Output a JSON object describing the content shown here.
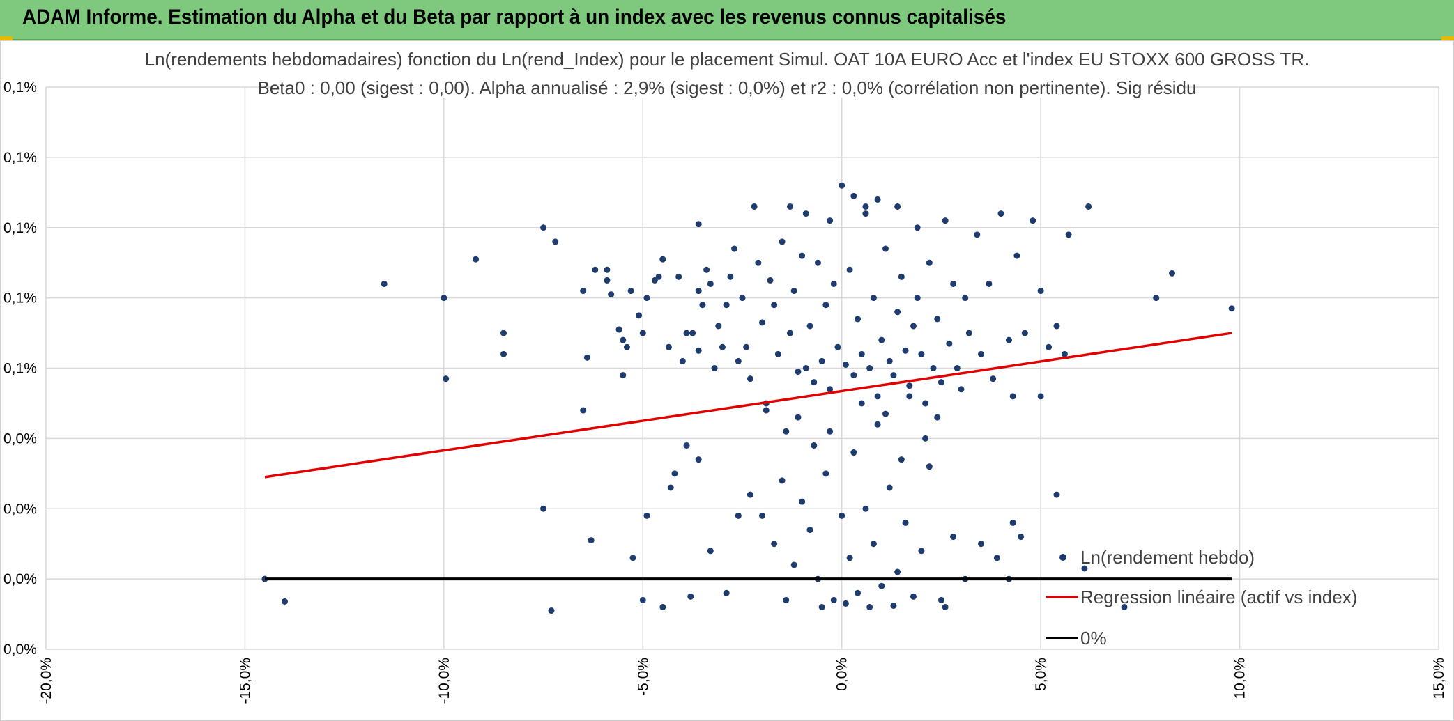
{
  "header": {
    "title": "ADAM Informe. Estimation du Alpha et du Beta par rapport à un index avec les revenus connus capitalisés"
  },
  "colors": {
    "header_bg": "#7ec97e",
    "points": "#1f3c6e",
    "regression": "#e00000",
    "zero_line": "#000000",
    "grid": "#d9d9d9"
  },
  "chart_data": {
    "type": "scatter",
    "title_line1": "Ln(rendements hebdomadaires) fonction du Ln(rend_Index) pour le placement Simul. OAT 10A EURO Acc et l'index EU STOXX 600 GROSS TR.",
    "title_line2": "Beta0 : 0,00 (sigest : 0,00). Alpha annualisé : 2,9% (sigest : 0,0%) et r2 : 0,0% (corrélation non pertinente). Sig résidu",
    "x_ticks": [
      "-20,0%",
      "-15,0%",
      "-10,0%",
      "-5,0%",
      "0,0%",
      "5,0%",
      "10,0%",
      "15,0%"
    ],
    "x_tick_values": [
      -20,
      -15,
      -10,
      -5,
      0,
      5,
      10,
      15
    ],
    "y_ticks": [
      "0,0%",
      "0,0%",
      "0,0%",
      "0,0%",
      "0,1%",
      "0,1%",
      "0,1%",
      "0,1%",
      "0,1%"
    ],
    "xlim": [
      -20,
      15
    ],
    "ylim": [
      0,
      8
    ],
    "grid": true,
    "legend_position": "bottom-right",
    "series": [
      {
        "name": "Ln(rendement hebdo)",
        "kind": "points"
      },
      {
        "name": "Regression linéaire (actif vs index)",
        "kind": "line",
        "x": [
          -14.5,
          9.8
        ],
        "y": [
          2.45,
          4.5
        ]
      },
      {
        "name": "0%",
        "kind": "line",
        "x": [
          -14.5,
          9.8
        ],
        "y": [
          1.0,
          1.0
        ]
      }
    ],
    "points": [
      [
        -14.5,
        1.0
      ],
      [
        -14.0,
        0.68
      ],
      [
        -11.5,
        5.2
      ],
      [
        -10.0,
        5.0
      ],
      [
        -9.95,
        3.85
      ],
      [
        -9.2,
        5.55
      ],
      [
        -8.5,
        4.5
      ],
      [
        -8.5,
        4.2
      ],
      [
        -7.5,
        6.0
      ],
      [
        -7.5,
        2.0
      ],
      [
        -7.3,
        0.55
      ],
      [
        -7.2,
        5.8
      ],
      [
        -6.5,
        3.4
      ],
      [
        -6.5,
        5.1
      ],
      [
        -6.4,
        4.15
      ],
      [
        -6.3,
        1.55
      ],
      [
        -6.2,
        5.4
      ],
      [
        -5.9,
        5.4
      ],
      [
        -5.9,
        5.25
      ],
      [
        -5.8,
        5.05
      ],
      [
        -5.6,
        4.55
      ],
      [
        -5.5,
        4.4
      ],
      [
        -5.4,
        4.3
      ],
      [
        -5.5,
        3.9
      ],
      [
        -5.3,
        5.1
      ],
      [
        -5.25,
        1.3
      ],
      [
        -5.1,
        4.75
      ],
      [
        -5.0,
        4.5
      ],
      [
        -4.9,
        5.0
      ],
      [
        -4.9,
        1.9
      ],
      [
        -4.7,
        5.25
      ],
      [
        -4.6,
        5.3
      ],
      [
        -4.5,
        5.55
      ],
      [
        -4.3,
        2.3
      ],
      [
        -4.35,
        4.3
      ],
      [
        -4.1,
        5.3
      ],
      [
        -4.0,
        4.1
      ],
      [
        -3.9,
        4.5
      ],
      [
        -3.6,
        4.25
      ],
      [
        -3.75,
        4.5
      ],
      [
        -3.6,
        5.1
      ],
      [
        -3.6,
        6.05
      ],
      [
        -3.5,
        4.9
      ],
      [
        -3.4,
        5.4
      ],
      [
        -3.3,
        5.2
      ],
      [
        -3.2,
        4.0
      ],
      [
        -3.1,
        4.6
      ],
      [
        -3.0,
        4.3
      ],
      [
        -2.9,
        4.9
      ],
      [
        -2.8,
        5.3
      ],
      [
        -2.7,
        5.7
      ],
      [
        -2.6,
        4.1
      ],
      [
        -2.5,
        5.0
      ],
      [
        -2.4,
        4.3
      ],
      [
        -2.3,
        3.85
      ],
      [
        -2.2,
        6.3
      ],
      [
        -2.1,
        5.5
      ],
      [
        -2.0,
        4.65
      ],
      [
        -1.9,
        3.5
      ],
      [
        -1.8,
        5.25
      ],
      [
        -1.7,
        4.9
      ],
      [
        -1.6,
        4.2
      ],
      [
        -1.5,
        5.8
      ],
      [
        -1.4,
        3.1
      ],
      [
        -1.3,
        4.5
      ],
      [
        -1.2,
        5.1
      ],
      [
        -1.1,
        3.95
      ],
      [
        -1.0,
        5.6
      ],
      [
        -0.9,
        4.0
      ],
      [
        -0.8,
        4.6
      ],
      [
        -0.7,
        3.8
      ],
      [
        -0.6,
        5.5
      ],
      [
        -0.5,
        4.1
      ],
      [
        -0.4,
        4.9
      ],
      [
        -0.3,
        3.7
      ],
      [
        -0.2,
        5.2
      ],
      [
        -0.1,
        4.3
      ],
      [
        0.0,
        6.6
      ],
      [
        0.1,
        4.05
      ],
      [
        0.2,
        5.4
      ],
      [
        0.3,
        3.9
      ],
      [
        0.4,
        4.7
      ],
      [
        0.5,
        4.2
      ],
      [
        0.6,
        6.3
      ],
      [
        0.7,
        4.0
      ],
      [
        0.8,
        5.0
      ],
      [
        0.9,
        3.6
      ],
      [
        1.0,
        4.4
      ],
      [
        1.1,
        5.7
      ],
      [
        1.2,
        4.1
      ],
      [
        1.3,
        3.9
      ],
      [
        1.4,
        4.8
      ],
      [
        1.5,
        5.3
      ],
      [
        1.6,
        4.25
      ],
      [
        1.7,
        3.75
      ],
      [
        1.8,
        4.6
      ],
      [
        1.9,
        5.0
      ],
      [
        2.0,
        4.2
      ],
      [
        2.1,
        3.5
      ],
      [
        2.2,
        5.5
      ],
      [
        2.3,
        4.0
      ],
      [
        2.4,
        4.7
      ],
      [
        2.5,
        3.8
      ],
      [
        2.6,
        6.1
      ],
      [
        2.7,
        4.35
      ],
      [
        2.8,
        5.2
      ],
      [
        2.9,
        4.0
      ],
      [
        3.0,
        3.7
      ],
      [
        3.1,
        5.0
      ],
      [
        3.2,
        4.5
      ],
      [
        3.4,
        5.9
      ],
      [
        3.5,
        4.2
      ],
      [
        3.7,
        5.2
      ],
      [
        3.8,
        3.85
      ],
      [
        4.0,
        6.2
      ],
      [
        4.2,
        4.4
      ],
      [
        4.3,
        3.6
      ],
      [
        4.4,
        5.6
      ],
      [
        4.6,
        4.5
      ],
      [
        4.8,
        6.1
      ],
      [
        5.0,
        5.1
      ],
      [
        5.0,
        3.6
      ],
      [
        5.2,
        4.3
      ],
      [
        5.4,
        4.6
      ],
      [
        5.6,
        4.2
      ],
      [
        5.7,
        5.9
      ],
      [
        5.4,
        2.2
      ],
      [
        6.2,
        6.3
      ],
      [
        7.1,
        0.6
      ],
      [
        7.9,
        5.0
      ],
      [
        8.3,
        5.35
      ],
      [
        9.8,
        4.85
      ],
      [
        -2.3,
        2.2
      ],
      [
        -2.0,
        1.9
      ],
      [
        -1.7,
        1.5
      ],
      [
        -1.5,
        2.4
      ],
      [
        -1.2,
        1.2
      ],
      [
        -1.0,
        2.1
      ],
      [
        -0.8,
        1.7
      ],
      [
        -0.6,
        1.0
      ],
      [
        -0.4,
        2.5
      ],
      [
        -0.2,
        0.7
      ],
      [
        0.0,
        1.9
      ],
      [
        0.2,
        1.3
      ],
      [
        0.4,
        0.8
      ],
      [
        0.6,
        2.0
      ],
      [
        0.8,
        1.5
      ],
      [
        1.0,
        0.9
      ],
      [
        1.2,
        2.3
      ],
      [
        1.4,
        1.1
      ],
      [
        1.6,
        1.8
      ],
      [
        1.8,
        0.75
      ],
      [
        2.0,
        1.4
      ],
      [
        2.2,
        2.6
      ],
      [
        2.5,
        0.7
      ],
      [
        2.8,
        1.6
      ],
      [
        3.1,
        1.0
      ],
      [
        3.5,
        1.5
      ],
      [
        3.9,
        1.3
      ],
      [
        4.3,
        1.8
      ],
      [
        4.5,
        1.6
      ],
      [
        6.1,
        1.15
      ],
      [
        -3.3,
        1.4
      ],
      [
        -3.6,
        2.7
      ],
      [
        -3.9,
        2.9
      ],
      [
        -4.2,
        2.5
      ],
      [
        -2.9,
        0.8
      ],
      [
        -2.6,
        1.9
      ],
      [
        -0.7,
        2.9
      ],
      [
        -0.3,
        3.1
      ],
      [
        0.3,
        2.8
      ],
      [
        0.9,
        3.2
      ],
      [
        1.5,
        2.7
      ],
      [
        2.1,
        3.0
      ],
      [
        -1.9,
        3.4
      ],
      [
        -1.1,
        3.3
      ],
      [
        0.5,
        3.5
      ],
      [
        1.1,
        3.35
      ],
      [
        1.7,
        3.6
      ],
      [
        2.4,
        3.3
      ],
      [
        -0.5,
        0.6
      ],
      [
        0.1,
        0.65
      ],
      [
        0.7,
        0.6
      ],
      [
        1.3,
        0.62
      ],
      [
        -1.4,
        0.7
      ],
      [
        -4.5,
        0.6
      ],
      [
        -5.0,
        0.7
      ],
      [
        -3.8,
        0.75
      ],
      [
        2.6,
        0.6
      ],
      [
        4.2,
        1.0
      ],
      [
        -0.9,
        6.2
      ],
      [
        0.3,
        6.45
      ],
      [
        0.9,
        6.4
      ],
      [
        1.4,
        6.3
      ],
      [
        -1.3,
        6.3
      ],
      [
        0.6,
        6.2
      ],
      [
        -0.3,
        6.1
      ],
      [
        1.9,
        6.0
      ]
    ]
  }
}
